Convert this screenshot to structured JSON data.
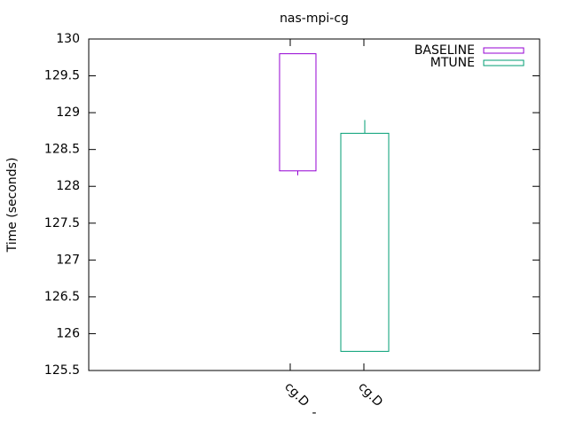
{
  "chart_data": {
    "type": "boxplot",
    "title": "nas-mpi-cg",
    "xlabel": "-",
    "ylabel": "Time (seconds)",
    "categories": [
      "cg.D",
      "cg.D"
    ],
    "series": [
      {
        "name": "BASELINE",
        "color": "#9400d3",
        "min": 128.15,
        "box_low": 128.21,
        "box_high": 129.8,
        "max": 129.8
      },
      {
        "name": "MTUNE",
        "color": "#009e73",
        "min": 125.76,
        "box_low": 125.76,
        "box_high": 128.72,
        "max": 128.9
      }
    ],
    "ylim": [
      125.5,
      130
    ],
    "yticks": [
      125.5,
      126,
      126.5,
      127,
      127.5,
      128,
      128.5,
      129,
      129.5,
      130
    ],
    "legend": "top-right"
  }
}
